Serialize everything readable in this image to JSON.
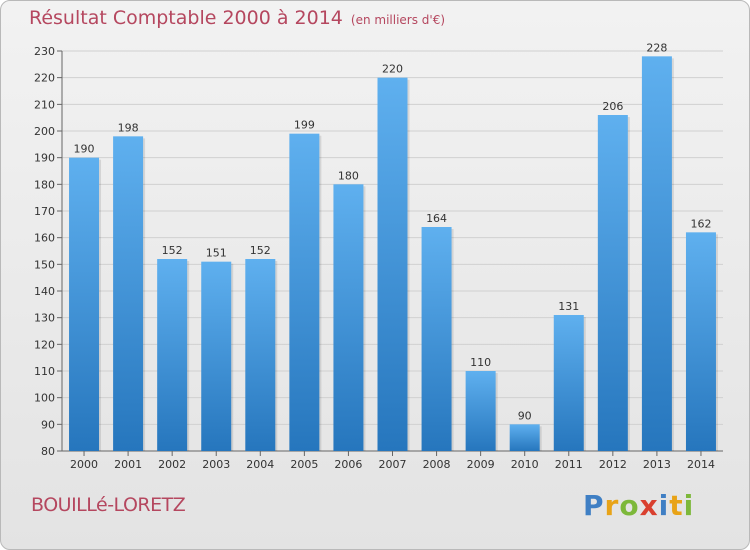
{
  "chart_data": {
    "type": "bar",
    "title": "Résultat Comptable 2000 à 2014",
    "subtitle": "(en milliers d'€)",
    "categories": [
      "2000",
      "2001",
      "2002",
      "2003",
      "2004",
      "2005",
      "2006",
      "2007",
      "2008",
      "2009",
      "2010",
      "2011",
      "2012",
      "2013",
      "2014"
    ],
    "values": [
      190,
      198,
      152,
      151,
      152,
      199,
      180,
      220,
      164,
      110,
      90,
      131,
      206,
      228,
      162
    ],
    "ylim": [
      80,
      230
    ],
    "yticks": [
      80,
      90,
      100,
      110,
      120,
      130,
      140,
      150,
      160,
      170,
      180,
      190,
      200,
      210,
      220,
      230
    ],
    "grid": true,
    "bar_color": "#3a8fd6"
  },
  "footer": {
    "commune": "BOUILLé-LORETZ",
    "logo_letters": [
      "P",
      "r",
      "o",
      "x",
      "i",
      "t",
      "i"
    ]
  }
}
